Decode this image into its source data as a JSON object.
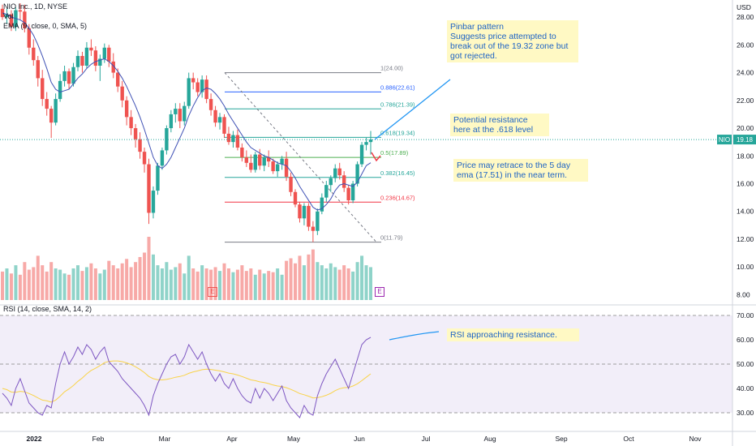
{
  "header": {
    "symbol_line": "NIO Inc., 1D, NYSE",
    "vol_label": "Vol",
    "ema_label": "EMA (9, close, 0, SMA, 5)",
    "rsi_label": "RSI (14, close, SMA, 14, 2)"
  },
  "price_axis": {
    "currency": "USD",
    "ticks": [
      "28.00",
      "26.00",
      "24.00",
      "22.00",
      "20.00",
      "18.00",
      "16.00",
      "14.00",
      "12.00",
      "10.00",
      "8.00"
    ]
  },
  "rsi_axis": {
    "ticks": [
      "70.00",
      "60.00",
      "50.00",
      "40.00",
      "30.00"
    ]
  },
  "time_axis": {
    "ticks": [
      "2022",
      "Feb",
      "Mar",
      "Apr",
      "May",
      "Jun",
      "Jul",
      "Aug",
      "Sep",
      "Oct",
      "Nov"
    ]
  },
  "last_price": {
    "symbol": "NIO",
    "value": "19.18"
  },
  "fib_labels": [
    "1(24.00)",
    "0.886(22.61)",
    "0.786(21.39)",
    "0.618(19.34)",
    "0.5(17.89)",
    "0.382(16.45)",
    "0.236(14.67)",
    "0(11.79)"
  ],
  "notes": {
    "pinbar": "Pinbar pattern\nSuggests price attempted to break out of the 19.32 zone but got rejected.",
    "resistance": "Potential resistance here at the .618 level",
    "retrace": "Price may retrace to the 5 day ema (17.51) in the near term.",
    "rsi": "RSI approaching resistance."
  },
  "earnings_marker": "E",
  "colors": {
    "up": "#26a69a",
    "down": "#ef5350",
    "ema": "#3f51b5",
    "rsi": "#7e57c2",
    "rsi_ma": "#f9d349",
    "note_text": "#1e63c4",
    "note_bg": "#fff9c4"
  },
  "chart_data": {
    "type": "candlestick",
    "series_count": 2,
    "price": {
      "ylim": [
        7.5,
        29
      ],
      "candles": [
        [
          28.6,
          28.9,
          27.8,
          28.0
        ],
        [
          28.0,
          28.6,
          27.5,
          28.2
        ],
        [
          28.2,
          28.5,
          27.0,
          27.3
        ],
        [
          27.3,
          28.7,
          27.0,
          28.5
        ],
        [
          28.5,
          29.0,
          27.8,
          28.4
        ],
        [
          28.4,
          28.9,
          26.9,
          27.2
        ],
        [
          27.2,
          27.5,
          25.3,
          25.8
        ],
        [
          25.8,
          26.4,
          24.5,
          24.9
        ],
        [
          24.9,
          25.2,
          23.0,
          23.6
        ],
        [
          23.6,
          24.2,
          21.6,
          22.1
        ],
        [
          22.1,
          22.6,
          20.9,
          21.4
        ],
        [
          21.4,
          21.6,
          19.3,
          20.4
        ],
        [
          20.4,
          22.5,
          20.2,
          22.1
        ],
        [
          22.1,
          23.9,
          21.9,
          23.4
        ],
        [
          23.4,
          24.5,
          23.0,
          24.1
        ],
        [
          24.1,
          24.3,
          22.8,
          23.2
        ],
        [
          23.2,
          24.7,
          23.0,
          24.4
        ],
        [
          24.4,
          25.6,
          24.1,
          25.2
        ],
        [
          25.2,
          25.5,
          24.0,
          24.5
        ],
        [
          24.5,
          26.2,
          24.3,
          25.8
        ],
        [
          25.8,
          26.4,
          25.2,
          25.6
        ],
        [
          25.6,
          25.9,
          24.1,
          24.5
        ],
        [
          24.5,
          25.3,
          23.4,
          25.0
        ],
        [
          25.0,
          26.1,
          24.7,
          25.8
        ],
        [
          25.8,
          26.0,
          24.4,
          24.8
        ],
        [
          24.8,
          25.4,
          23.6,
          24.0
        ],
        [
          24.0,
          24.3,
          22.6,
          23.0
        ],
        [
          23.0,
          23.4,
          21.5,
          22.0
        ],
        [
          22.0,
          22.3,
          20.2,
          20.8
        ],
        [
          20.8,
          21.3,
          19.5,
          20.0
        ],
        [
          20.0,
          20.3,
          18.6,
          19.2
        ],
        [
          19.2,
          19.7,
          17.8,
          18.3
        ],
        [
          18.3,
          18.6,
          16.8,
          17.4
        ],
        [
          17.4,
          17.8,
          13.1,
          13.9
        ],
        [
          13.9,
          15.8,
          13.5,
          15.5
        ],
        [
          15.5,
          17.5,
          15.2,
          17.3
        ],
        [
          17.3,
          18.6,
          17.0,
          18.4
        ],
        [
          18.4,
          20.2,
          18.1,
          20.0
        ],
        [
          20.0,
          21.3,
          19.7,
          21.0
        ],
        [
          21.0,
          21.8,
          20.4,
          21.4
        ],
        [
          21.4,
          21.8,
          20.0,
          20.5
        ],
        [
          20.5,
          21.9,
          20.2,
          21.6
        ],
        [
          21.6,
          24.0,
          21.4,
          23.6
        ],
        [
          23.6,
          24.0,
          22.8,
          23.3
        ],
        [
          23.3,
          23.6,
          22.3,
          22.6
        ],
        [
          22.6,
          23.8,
          22.2,
          23.5
        ],
        [
          23.5,
          23.8,
          21.8,
          22.1
        ],
        [
          22.1,
          22.5,
          20.9,
          21.3
        ],
        [
          21.3,
          21.6,
          20.1,
          20.4
        ],
        [
          20.4,
          21.1,
          19.9,
          20.8
        ],
        [
          20.8,
          21.0,
          19.3,
          19.6
        ],
        [
          19.6,
          20.1,
          18.8,
          19.0
        ],
        [
          19.0,
          19.8,
          18.6,
          19.5
        ],
        [
          19.5,
          19.9,
          18.4,
          18.6
        ],
        [
          18.6,
          18.9,
          17.6,
          17.9
        ],
        [
          17.9,
          18.4,
          17.2,
          17.5
        ],
        [
          17.5,
          18.1,
          16.8,
          17.0
        ],
        [
          17.0,
          18.3,
          16.8,
          18.1
        ],
        [
          18.1,
          18.5,
          17.0,
          17.3
        ],
        [
          17.3,
          18.1,
          16.9,
          17.9
        ],
        [
          17.9,
          18.4,
          17.2,
          17.6
        ],
        [
          17.6,
          17.8,
          16.7,
          16.9
        ],
        [
          16.9,
          17.6,
          16.5,
          17.4
        ],
        [
          17.4,
          18.0,
          17.0,
          17.8
        ],
        [
          17.8,
          18.3,
          16.2,
          16.5
        ],
        [
          16.5,
          16.8,
          15.1,
          15.4
        ],
        [
          15.4,
          15.6,
          14.3,
          14.5
        ],
        [
          14.5,
          14.7,
          13.2,
          13.5
        ],
        [
          13.5,
          14.6,
          13.0,
          14.4
        ],
        [
          14.4,
          14.6,
          12.6,
          12.9
        ],
        [
          12.9,
          13.3,
          11.79,
          12.6
        ],
        [
          12.6,
          14.2,
          12.3,
          14.0
        ],
        [
          14.0,
          15.3,
          13.8,
          15.0
        ],
        [
          15.0,
          16.2,
          14.7,
          15.9
        ],
        [
          15.9,
          16.6,
          15.4,
          16.4
        ],
        [
          16.4,
          17.4,
          16.1,
          17.1
        ],
        [
          17.1,
          17.5,
          16.3,
          16.6
        ],
        [
          16.6,
          16.9,
          15.4,
          15.7
        ],
        [
          15.7,
          15.9,
          14.5,
          14.8
        ],
        [
          14.8,
          16.2,
          14.6,
          16.0
        ],
        [
          16.0,
          17.6,
          15.8,
          17.4
        ],
        [
          17.4,
          19.0,
          17.2,
          18.8
        ],
        [
          18.8,
          19.3,
          18.4,
          19.0
        ],
        [
          19.0,
          19.8,
          18.1,
          19.18
        ]
      ],
      "ema": [
        28.3,
        28.2,
        28.0,
        27.9,
        27.8,
        27.6,
        27.2,
        26.7,
        26.0,
        25.2,
        24.3,
        23.3,
        22.8,
        22.6,
        22.7,
        22.8,
        23.2,
        23.6,
        23.9,
        24.3,
        24.6,
        24.8,
        24.9,
        25.0,
        24.8,
        24.5,
        24.1,
        23.6,
        23.0,
        22.3,
        21.6,
        20.8,
        19.9,
        18.9,
        17.9,
        17.3,
        17.1,
        17.4,
        17.9,
        18.6,
        19.3,
        20.0,
        20.9,
        21.6,
        22.2,
        22.7,
        22.9,
        22.8,
        22.5,
        22.1,
        21.6,
        21.0,
        20.5,
        20.0,
        19.5,
        19.0,
        18.6,
        18.4,
        18.2,
        18.0,
        17.9,
        17.7,
        17.5,
        17.4,
        17.3,
        16.9,
        16.4,
        15.8,
        15.3,
        14.8,
        14.3,
        14.1,
        14.2,
        14.5,
        14.9,
        15.5,
        15.9,
        16.0,
        15.9,
        15.8,
        16.1,
        16.7,
        17.3,
        17.51
      ],
      "fib_levels": [
        24.0,
        22.61,
        21.39,
        19.34,
        17.89,
        16.45,
        14.67,
        11.79
      ]
    },
    "volume": [
      0.45,
      0.5,
      0.42,
      0.55,
      0.4,
      0.6,
      0.48,
      0.52,
      0.7,
      0.55,
      0.45,
      0.6,
      0.5,
      0.48,
      0.42,
      0.4,
      0.5,
      0.55,
      0.46,
      0.52,
      0.58,
      0.5,
      0.42,
      0.48,
      0.62,
      0.55,
      0.5,
      0.58,
      0.65,
      0.52,
      0.6,
      0.68,
      0.75,
      1.0,
      0.72,
      0.55,
      0.5,
      0.6,
      0.48,
      0.52,
      0.58,
      0.42,
      0.7,
      0.5,
      0.45,
      0.55,
      0.5,
      0.48,
      0.52,
      0.46,
      0.58,
      0.5,
      0.44,
      0.48,
      0.55,
      0.46,
      0.5,
      0.4,
      0.48,
      0.42,
      0.46,
      0.44,
      0.5,
      0.4,
      0.62,
      0.66,
      0.58,
      0.7,
      0.55,
      0.72,
      0.8,
      0.6,
      0.55,
      0.5,
      0.58,
      0.52,
      0.48,
      0.55,
      0.5,
      0.45,
      0.6,
      0.7,
      0.55,
      0.52
    ],
    "rsi": {
      "ylim": [
        27,
        72
      ],
      "values": [
        38,
        36,
        33,
        40,
        44,
        39,
        34,
        32,
        30,
        29,
        33,
        32,
        42,
        50,
        55,
        50,
        53,
        57,
        54,
        58,
        56,
        52,
        55,
        57,
        51,
        49,
        47,
        44,
        42,
        40,
        38,
        36,
        33,
        29,
        37,
        42,
        46,
        50,
        53,
        54,
        50,
        53,
        58,
        55,
        52,
        55,
        50,
        46,
        43,
        46,
        42,
        40,
        44,
        40,
        37,
        35,
        34,
        40,
        36,
        40,
        38,
        35,
        38,
        41,
        35,
        32,
        30,
        28,
        33,
        30,
        29,
        37,
        42,
        46,
        49,
        52,
        48,
        44,
        40,
        46,
        52,
        58,
        60,
        61
      ],
      "ma": [
        40,
        39.5,
        38.5,
        38.4,
        38.8,
        38.6,
        37.9,
        37.1,
        36.1,
        35.2,
        34.9,
        34.4,
        35.2,
        36.8,
        38.6,
        39.8,
        41.2,
        42.9,
        44.3,
        46.0,
        47.4,
        48.3,
        49.4,
        50.6,
        51.1,
        51.3,
        51.3,
        51.0,
        50.5,
        49.8,
        48.9,
        47.8,
        46.5,
        44.9,
        44.0,
        43.6,
        43.5,
        43.7,
        44.1,
        44.6,
        44.9,
        45.4,
        46.2,
        46.8,
        47.2,
        47.7,
        47.9,
        47.8,
        47.5,
        47.2,
        46.8,
        46.3,
        46.0,
        45.5,
        44.9,
        44.2,
        43.5,
        43.2,
        42.7,
        42.4,
        42.0,
        41.4,
        41.0,
        40.8,
        40.3,
        39.6,
        38.8,
        37.9,
        37.4,
        36.8,
        36.1,
        36.2,
        36.6,
        37.2,
        38.0,
        39.1,
        39.9,
        40.3,
        40.4,
        41.0,
        41.9,
        43.2,
        44.6,
        46.0
      ]
    }
  }
}
